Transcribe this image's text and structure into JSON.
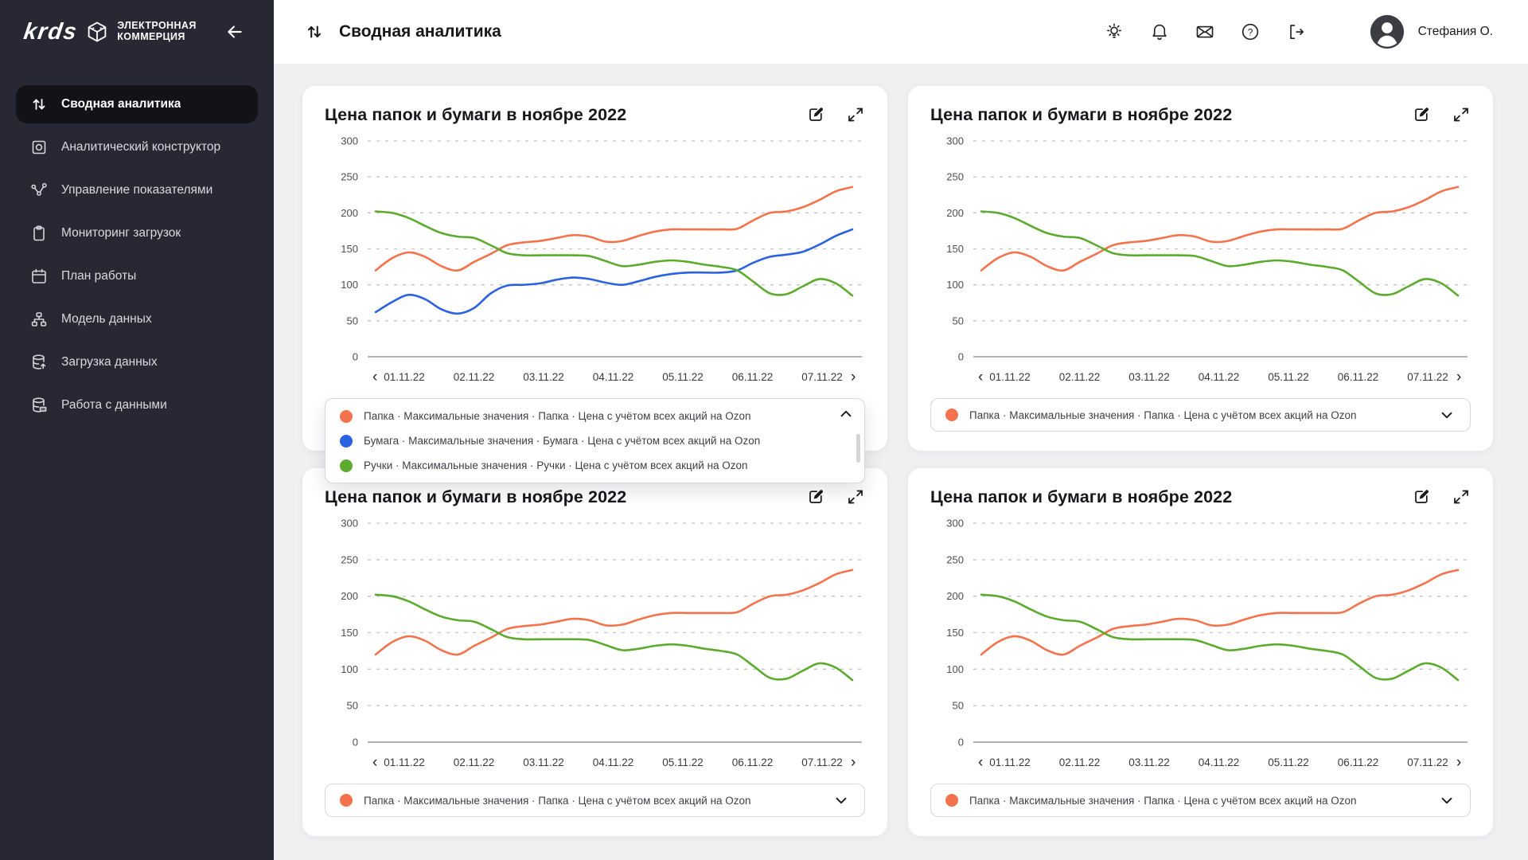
{
  "app": {
    "logo_primary": "krds",
    "logo_line1": "ЭЛЕКТРОННАЯ",
    "logo_line2": "КОММЕРЦИЯ"
  },
  "header": {
    "title": "Сводная аналитика",
    "user_name": "Стефания О.",
    "icons": [
      {
        "name": "lamp-icon"
      },
      {
        "name": "bell-icon"
      },
      {
        "name": "mail-icon"
      },
      {
        "name": "help-icon"
      },
      {
        "name": "logout-icon"
      }
    ]
  },
  "sidebar": {
    "items": [
      {
        "label": "Сводная аналитика",
        "icon": "analytics-arrows-icon",
        "active": true
      },
      {
        "label": "Аналитический конструктор",
        "icon": "constructor-icon",
        "active": false
      },
      {
        "label": "Управление показателями",
        "icon": "indicators-nodes-icon",
        "active": false
      },
      {
        "label": "Мониторинг загрузок",
        "icon": "clipboard-icon",
        "active": false
      },
      {
        "label": "План работы",
        "icon": "calendar-icon",
        "active": false
      },
      {
        "label": "Модель данных",
        "icon": "hierarchy-icon",
        "active": false
      },
      {
        "label": "Загрузка данных",
        "icon": "database-upload-icon",
        "active": false
      },
      {
        "label": "Работа с данными",
        "icon": "database-sql-icon",
        "active": false
      }
    ]
  },
  "colors": {
    "orange": "#F4724C",
    "blue": "#2B62E1",
    "green": "#5CAB2E",
    "sidebar_bg": "#272833",
    "active_item_bg": "#121217",
    "content_bg": "#F0F0F2",
    "grid": "#C4C4C8",
    "axis": "#97979D"
  },
  "chart_data": [
    {
      "type": "line",
      "title": "Цена папок и бумаги в ноябре 2022",
      "ylim": [
        0,
        300
      ],
      "yticks": [
        0,
        50,
        100,
        150,
        200,
        250,
        300
      ],
      "x_tick_labels": [
        "01.11.22",
        "02.11.22",
        "03.11.22",
        "04.11.22",
        "05.11.22",
        "06.11.22",
        "07.11.22"
      ],
      "grid": "horizontal-dashed",
      "legend_position": "bottom",
      "legend_expanded": true,
      "legend_items": [
        {
          "name": "Папка",
          "color": "#F4724C",
          "label": "Папка · Максимальные значения · Папка · Цена с учётом всех акций на Ozon"
        },
        {
          "name": "Бумага",
          "color": "#2B62E1",
          "label": "Бумага · Максимальные значения · Бумага · Цена с учётом всех акций на Ozon"
        },
        {
          "name": "Ручки",
          "color": "#5CAB2E",
          "label": "Ручки · Максимальные значения · Ручки · Цена с учётом всех акций на Ozon"
        }
      ],
      "series": [
        {
          "name": "Папка",
          "color": "#F4724C",
          "values": [
            120,
            137,
            145,
            139,
            126,
            120,
            132,
            143,
            155,
            159,
            161,
            165,
            169,
            167,
            160,
            161,
            168,
            174,
            177,
            177,
            177,
            177,
            178,
            190,
            200,
            202,
            208,
            218,
            230,
            236
          ]
        },
        {
          "name": "Бумага",
          "color": "#2B62E1",
          "values": [
            62,
            76,
            86,
            80,
            66,
            60,
            68,
            88,
            99,
            100,
            102,
            107,
            110,
            108,
            103,
            100,
            105,
            111,
            115,
            117,
            117,
            117,
            120,
            131,
            139,
            142,
            146,
            156,
            168,
            177
          ]
        },
        {
          "name": "Ручки",
          "color": "#5CAB2E",
          "values": [
            202,
            200,
            193,
            182,
            172,
            167,
            165,
            155,
            144,
            141,
            141,
            141,
            141,
            140,
            133,
            126,
            128,
            132,
            134,
            132,
            128,
            125,
            120,
            104,
            88,
            87,
            98,
            108,
            102,
            85
          ]
        }
      ]
    },
    {
      "type": "line",
      "title": "Цена папок и бумаги в ноябре 2022",
      "ylim": [
        0,
        300
      ],
      "yticks": [
        0,
        50,
        100,
        150,
        200,
        250,
        300
      ],
      "x_tick_labels": [
        "01.11.22",
        "02.11.22",
        "03.11.22",
        "04.11.22",
        "05.11.22",
        "06.11.22",
        "07.11.22"
      ],
      "grid": "horizontal-dashed",
      "legend_position": "bottom",
      "legend_expanded": false,
      "legend_items": [
        {
          "name": "Папка",
          "color": "#F4724C",
          "label": "Папка · Максимальные значения · Папка · Цена с учётом всех акций на Ozon"
        }
      ],
      "series": [
        {
          "name": "Папка",
          "color": "#F4724C",
          "values": [
            120,
            137,
            145,
            139,
            126,
            120,
            132,
            143,
            155,
            159,
            161,
            165,
            169,
            167,
            160,
            161,
            168,
            174,
            177,
            177,
            177,
            177,
            178,
            190,
            200,
            202,
            208,
            218,
            230,
            236
          ]
        },
        {
          "name": "Ручки",
          "color": "#5CAB2E",
          "values": [
            202,
            200,
            193,
            182,
            172,
            167,
            165,
            155,
            144,
            141,
            141,
            141,
            141,
            140,
            133,
            126,
            128,
            132,
            134,
            132,
            128,
            125,
            120,
            104,
            88,
            87,
            98,
            108,
            102,
            85
          ]
        }
      ]
    },
    {
      "type": "line",
      "title": "Цена папок и бумаги в ноябре 2022",
      "ylim": [
        0,
        300
      ],
      "yticks": [
        0,
        50,
        100,
        150,
        200,
        250,
        300
      ],
      "x_tick_labels": [
        "01.11.22",
        "02.11.22",
        "03.11.22",
        "04.11.22",
        "05.11.22",
        "06.11.22",
        "07.11.22"
      ],
      "grid": "horizontal-dashed",
      "legend_position": "bottom",
      "legend_expanded": false,
      "legend_items": [
        {
          "name": "Папка",
          "color": "#F4724C",
          "label": "Папка · Максимальные значения · Папка · Цена с учётом всех акций на Ozon"
        }
      ],
      "series": [
        {
          "name": "Папка",
          "color": "#F4724C",
          "values": [
            120,
            137,
            145,
            139,
            126,
            120,
            132,
            143,
            155,
            159,
            161,
            165,
            169,
            167,
            160,
            161,
            168,
            174,
            177,
            177,
            177,
            177,
            178,
            190,
            200,
            202,
            208,
            218,
            230,
            236
          ]
        },
        {
          "name": "Ручки",
          "color": "#5CAB2E",
          "values": [
            202,
            200,
            193,
            182,
            172,
            167,
            165,
            155,
            144,
            141,
            141,
            141,
            141,
            140,
            133,
            126,
            128,
            132,
            134,
            132,
            128,
            125,
            120,
            104,
            88,
            87,
            98,
            108,
            102,
            85
          ]
        }
      ]
    },
    {
      "type": "line",
      "title": "Цена папок и бумаги в ноябре 2022",
      "ylim": [
        0,
        300
      ],
      "yticks": [
        0,
        50,
        100,
        150,
        200,
        250,
        300
      ],
      "x_tick_labels": [
        "01.11.22",
        "02.11.22",
        "03.11.22",
        "04.11.22",
        "05.11.22",
        "06.11.22",
        "07.11.22"
      ],
      "grid": "horizontal-dashed",
      "legend_position": "bottom",
      "legend_expanded": false,
      "legend_items": [
        {
          "name": "Папка",
          "color": "#F4724C",
          "label": "Папка · Максимальные значения · Папка · Цена с учётом всех акций на Ozon"
        }
      ],
      "series": [
        {
          "name": "Папка",
          "color": "#F4724C",
          "values": [
            120,
            137,
            145,
            139,
            126,
            120,
            132,
            143,
            155,
            159,
            161,
            165,
            169,
            167,
            160,
            161,
            168,
            174,
            177,
            177,
            177,
            177,
            178,
            190,
            200,
            202,
            208,
            218,
            230,
            236
          ]
        },
        {
          "name": "Ручки",
          "color": "#5CAB2E",
          "values": [
            202,
            200,
            193,
            182,
            172,
            167,
            165,
            155,
            144,
            141,
            141,
            141,
            141,
            140,
            133,
            126,
            128,
            132,
            134,
            132,
            128,
            125,
            120,
            104,
            88,
            87,
            98,
            108,
            102,
            85
          ]
        }
      ]
    }
  ]
}
